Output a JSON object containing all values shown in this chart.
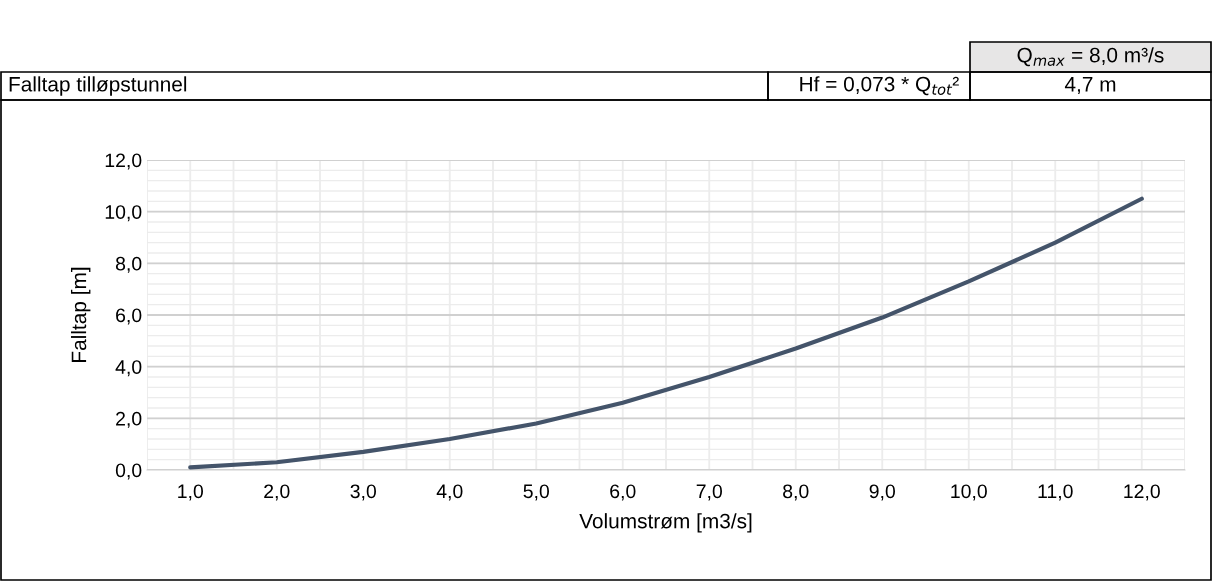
{
  "chart_data": {
    "type": "line",
    "title": "Falltap tilløpstunnel",
    "annotations": [
      "Q$_{max}$ = 8,0 m³/s",
      "Hf = 0,073 * Q$_{tot}$²",
      "4,7 m"
    ],
    "xlabel": "Volumstrøm [m3/s]",
    "ylabel": "Falltap [m]",
    "categories": [
      "1,0",
      "2,0",
      "3,0",
      "4,0",
      "5,0",
      "6,0",
      "7,0",
      "8,0",
      "9,0",
      "10,0",
      "11,0",
      "12,0"
    ],
    "series": [
      {
        "color": "#44546a",
        "values": [
          0.1,
          0.3,
          0.7,
          1.2,
          1.8,
          2.6,
          3.6,
          4.7,
          5.9,
          7.3,
          8.8,
          10.5
        ]
      }
    ],
    "ylim": [
      0,
      12
    ],
    "yticks": [
      {
        "value": 0,
        "label": "0,0"
      },
      {
        "value": 2,
        "label": "2,0"
      },
      {
        "value": 4,
        "label": "4,0"
      },
      {
        "value": 6,
        "label": "6,0"
      },
      {
        "value": 8,
        "label": "8,0"
      },
      {
        "value": 10,
        "label": "10,0"
      },
      {
        "value": 12,
        "label": "12,0"
      }
    ],
    "grid": true,
    "marker": "none",
    "line_style": "solid",
    "legend": false
  }
}
